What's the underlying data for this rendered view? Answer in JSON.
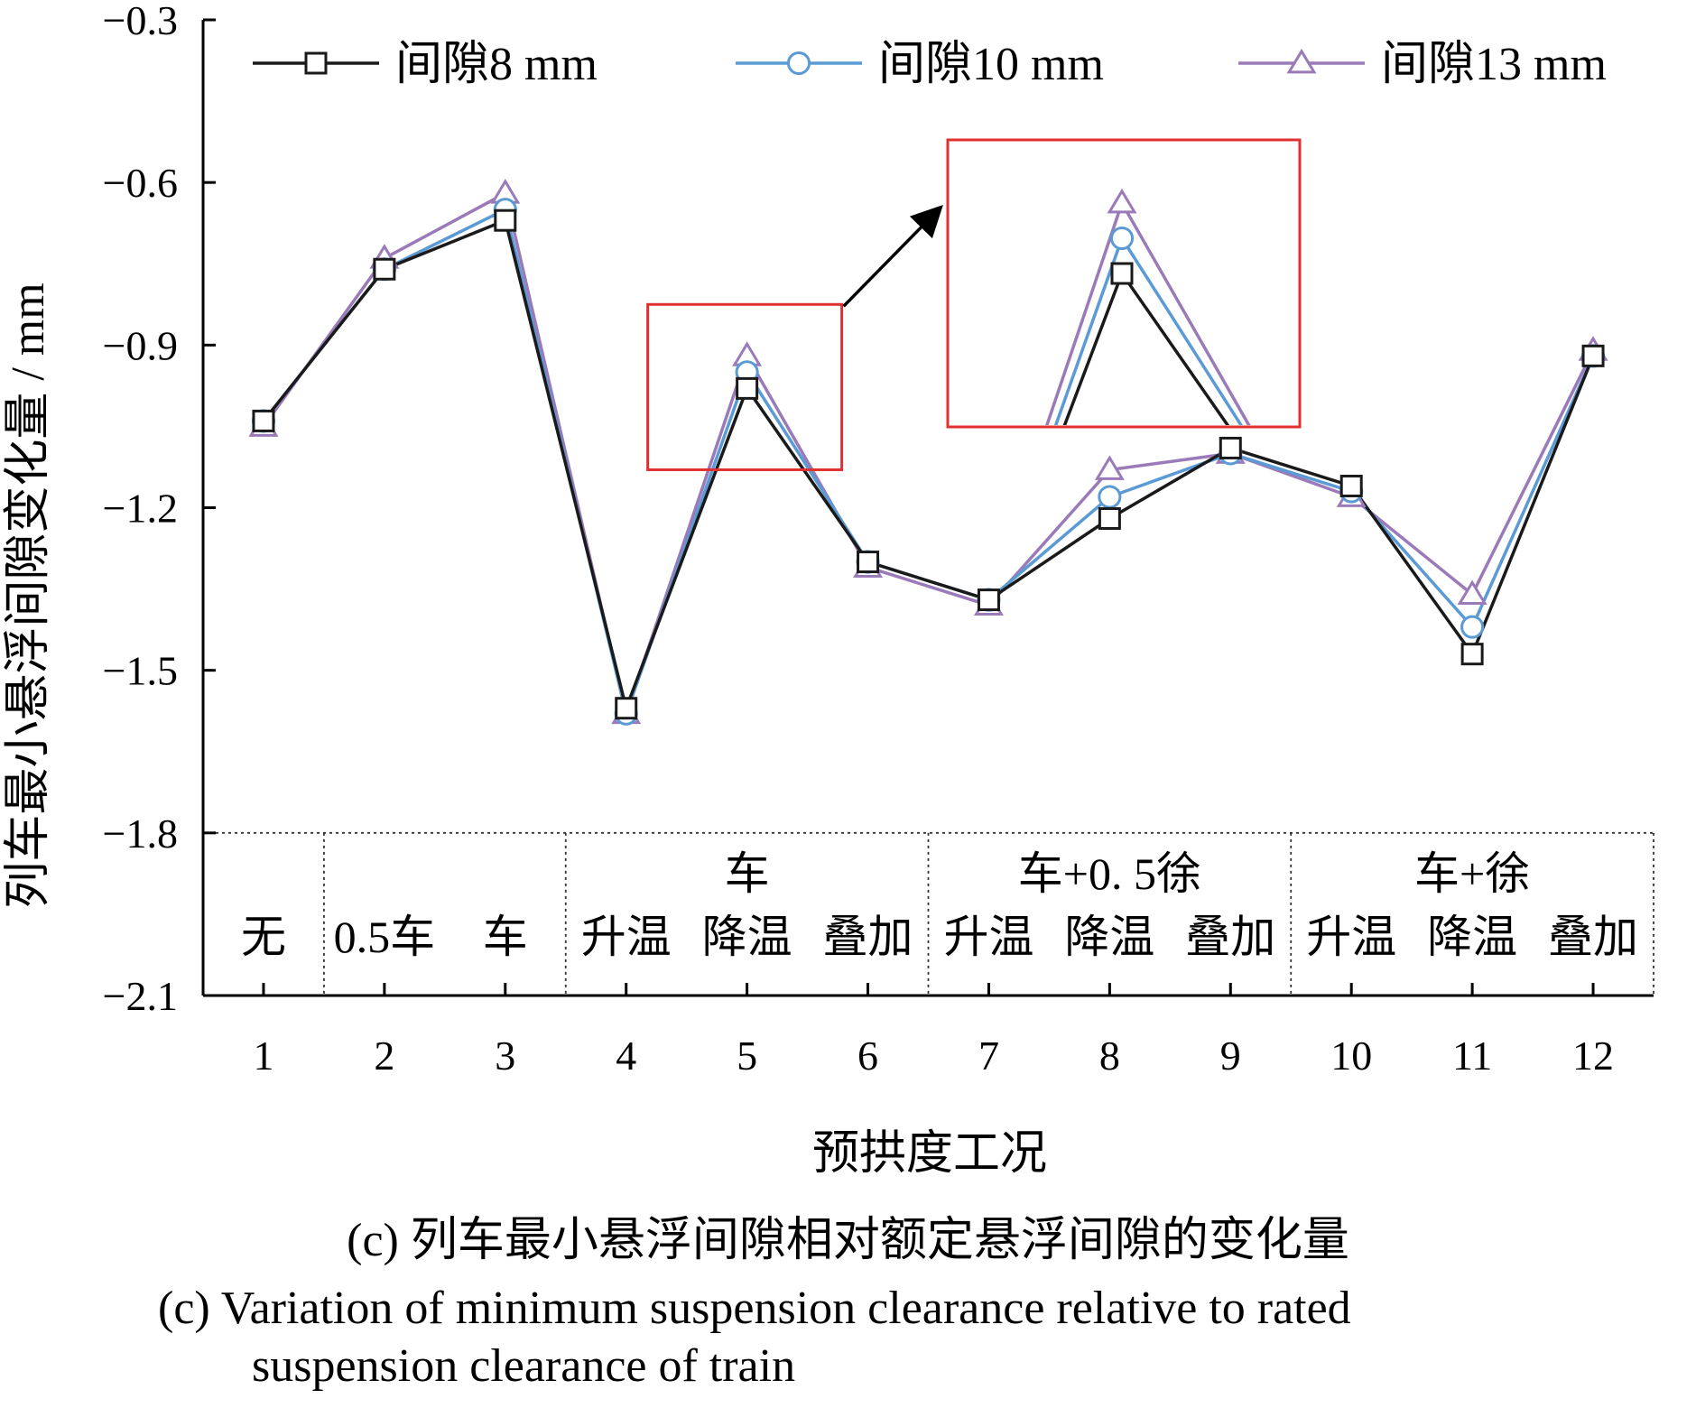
{
  "chart_data": {
    "type": "line",
    "x": [
      1,
      2,
      3,
      4,
      5,
      6,
      7,
      8,
      9,
      10,
      11,
      12
    ],
    "xlabel": "预拱度工况",
    "ylabel": "列车最小悬浮间隙变化量 / mm",
    "ylim": [
      -2.1,
      -0.3
    ],
    "yticks": [
      "−0.3",
      "−0.6",
      "−0.9",
      "−1.2",
      "−1.5",
      "−1.8",
      "−2.1"
    ],
    "ytick_values": [
      -0.3,
      -0.6,
      -0.9,
      -1.2,
      -1.5,
      -1.8,
      -2.1
    ],
    "xticks": [
      "1",
      "2",
      "3",
      "4",
      "5",
      "6",
      "7",
      "8",
      "9",
      "10",
      "11",
      "12"
    ],
    "legend_position": "top",
    "grid": false,
    "series": [
      {
        "name": "间隙8 mm",
        "marker": "square",
        "color": "#1a1a1a",
        "values": [
          -1.04,
          -0.76,
          -0.67,
          -1.57,
          -0.98,
          -1.3,
          -1.37,
          -1.22,
          -1.09,
          -1.16,
          -1.47,
          -0.92
        ]
      },
      {
        "name": "间隙10 mm",
        "marker": "circle",
        "color": "#5b9bd5",
        "values": [
          -1.04,
          -0.76,
          -0.65,
          -1.58,
          -0.95,
          -1.3,
          -1.37,
          -1.18,
          -1.1,
          -1.17,
          -1.42,
          -0.92
        ]
      },
      {
        "name": "间隙13 mm",
        "marker": "triangle",
        "color": "#9a7ab8",
        "values": [
          -1.05,
          -0.74,
          -0.62,
          -1.58,
          -0.92,
          -1.31,
          -1.38,
          -1.13,
          -1.1,
          -1.18,
          -1.36,
          -0.91
        ]
      }
    ],
    "condition_groups": [
      {
        "top": "",
        "labels": [
          "无"
        ]
      },
      {
        "top": "",
        "labels": [
          "0.5车",
          "车"
        ]
      },
      {
        "top": "车",
        "labels": [
          "升温",
          "降温",
          "叠加"
        ]
      },
      {
        "top": "车+0. 5徐",
        "labels": [
          "升温",
          "降温",
          "叠加"
        ]
      },
      {
        "top": "车+徐",
        "labels": [
          "升温",
          "降温",
          "叠加"
        ]
      }
    ],
    "annotation": {
      "type": "zoom-inset",
      "target_x": 5,
      "color": "#e03030"
    }
  },
  "captions": {
    "zh": "(c) 列车最小悬浮间隙相对额定悬浮间隙的变化量",
    "en_line1": "(c) Variation of minimum suspension clearance relative  to rated",
    "en_line2": "suspension clearance of train"
  }
}
